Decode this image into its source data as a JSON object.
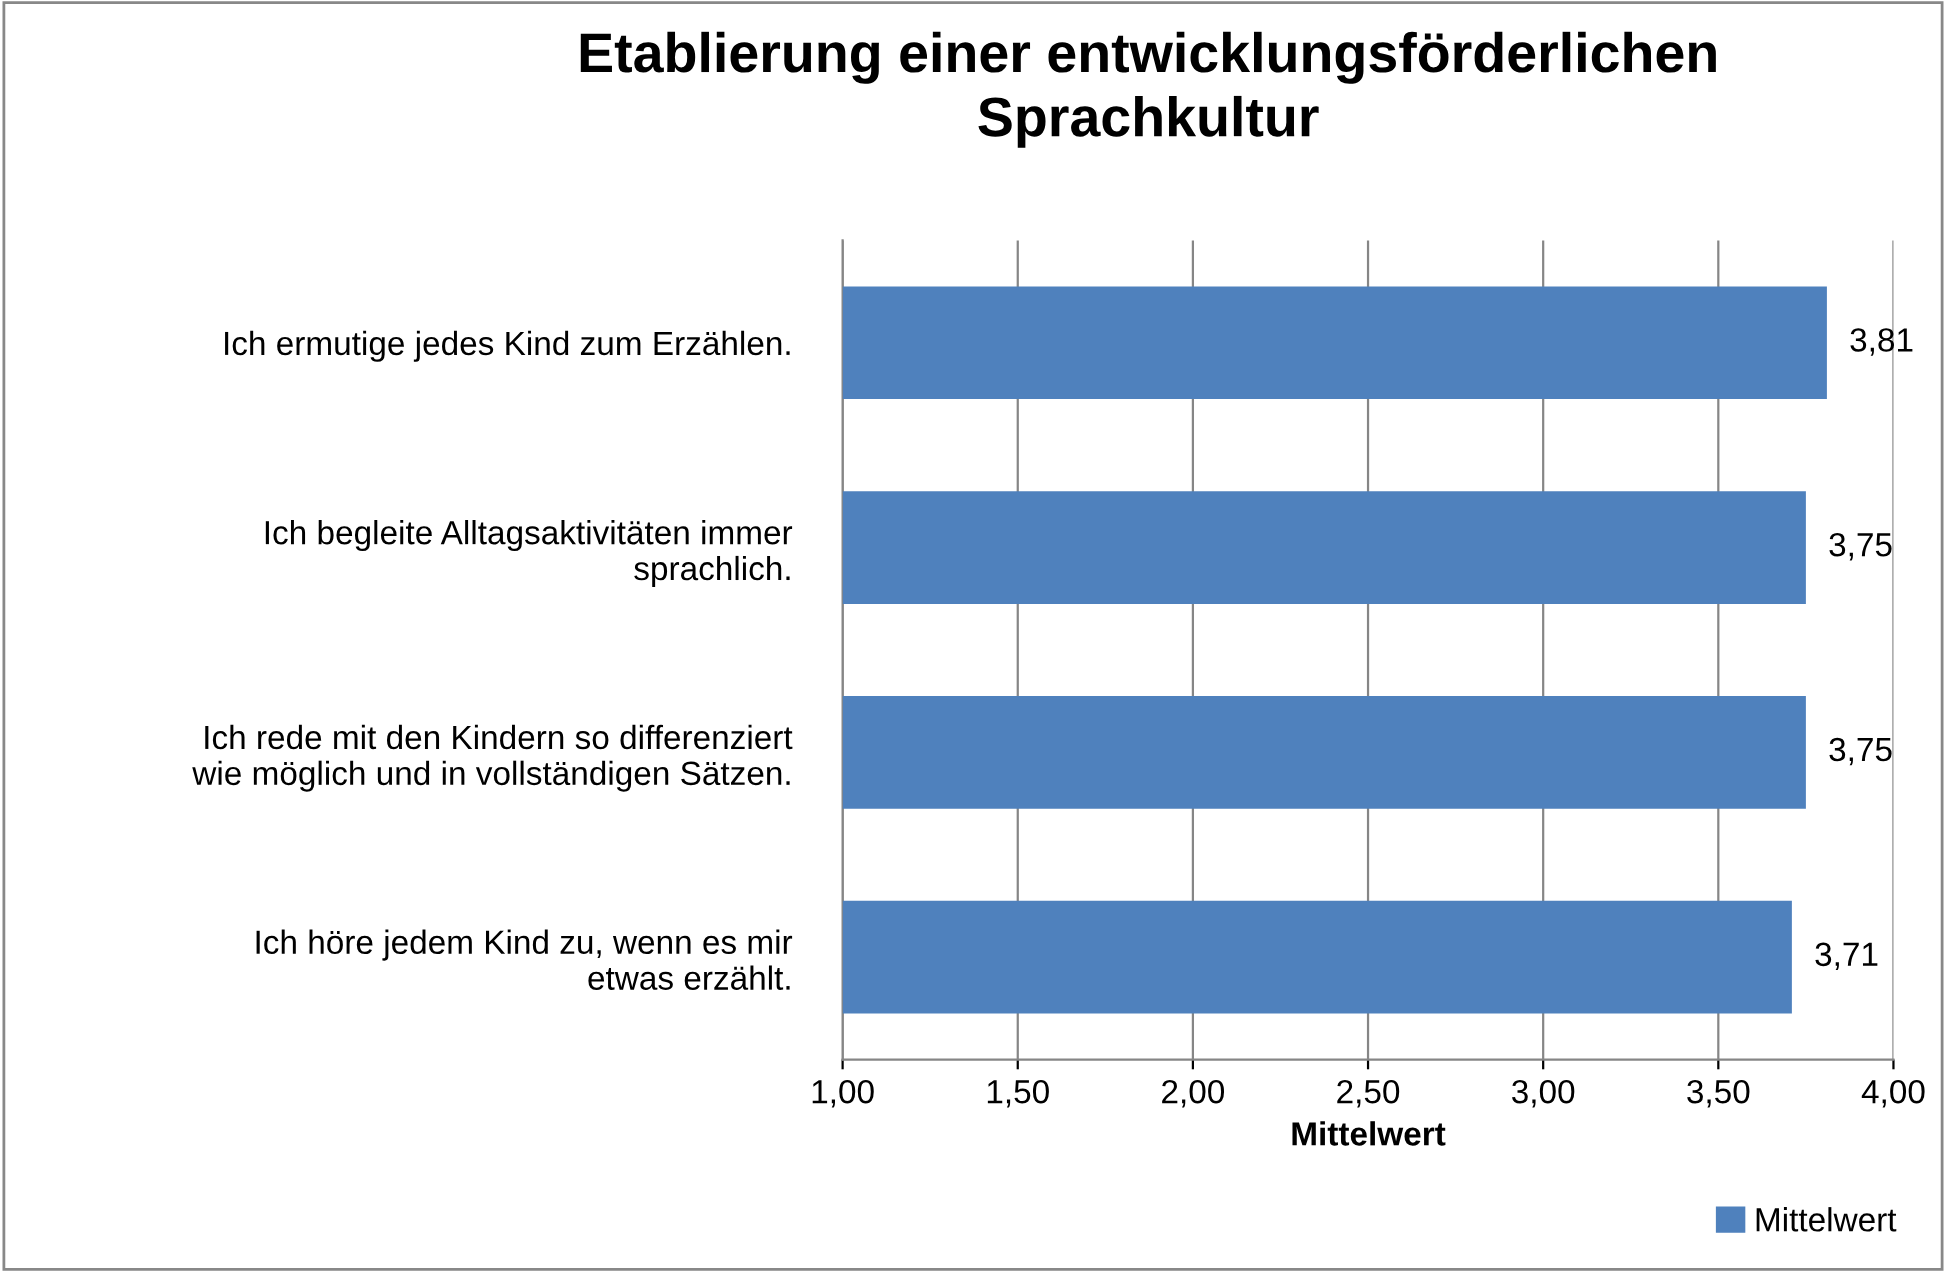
{
  "chart_data": {
    "type": "bar",
    "orientation": "horizontal",
    "title": "Etablierung einer entwicklungsförderlichen\nSprachkultur",
    "categories": [
      "Ich ermutige jedes Kind zum Erzählen.",
      "Ich begleite Alltagsaktivitäten immer\nsprachlich.",
      "Ich rede mit den Kindern so differenziert\nwie möglich und in vollständigen Sätzen.",
      "Ich höre jedem Kind zu, wenn es mir\netwas erzählt."
    ],
    "series": [
      {
        "name": "Mittelwert",
        "color": "#4f81bd",
        "values": [
          3.81,
          3.75,
          3.75,
          3.71
        ],
        "value_labels": [
          "3,81",
          "3,75",
          "3,75",
          "3,71"
        ]
      }
    ],
    "xlabel": "Mittelwert",
    "xlim": [
      1,
      4
    ],
    "xticks": [
      {
        "value": 1,
        "label": "1,00"
      },
      {
        "value": 1.5,
        "label": "1,50"
      },
      {
        "value": 2,
        "label": "2,00"
      },
      {
        "value": 2.5,
        "label": "2,50"
      },
      {
        "value": 3,
        "label": "3,00"
      },
      {
        "value": 3.5,
        "label": "3,50"
      },
      {
        "value": 4,
        "label": "4,00"
      }
    ],
    "grid": "x",
    "legend": "bottom right"
  }
}
